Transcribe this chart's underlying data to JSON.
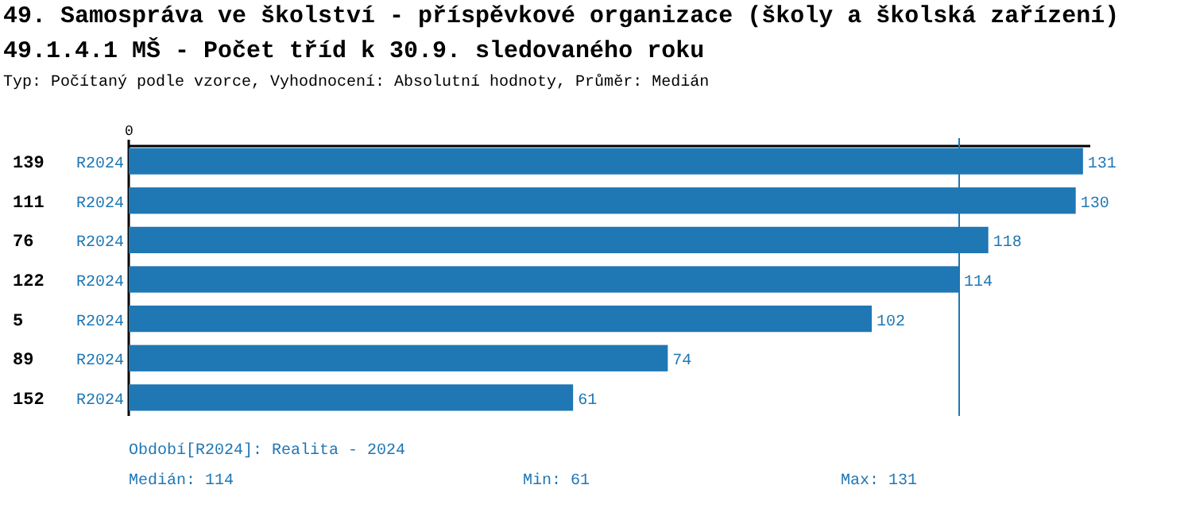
{
  "chart_data": {
    "type": "bar",
    "orientation": "horizontal",
    "title": "49. Samospráva ve školství - příspěvkové organizace (školy a školská zařízení)",
    "subtitle": "49.1.4.1 MŠ - Počet tříd k 30.9. sledovaného roku",
    "annotations": [
      "Typ: Počítaný podle vzorce, Vyhodnocení: Absolutní hodnoty, Průměr: Medián",
      "Období[R2024]: Realita - 2024",
      "Medián: 114",
      "Min: 61",
      "Max: 131",
      "0"
    ],
    "categories": [
      "139",
      "111",
      "76",
      "122",
      "5",
      "89",
      "152"
    ],
    "series": [
      {
        "name": "R2024",
        "color": "#1f77b4",
        "values": [
          131,
          130,
          118,
          114,
          102,
          74,
          61
        ]
      }
    ],
    "xlim": [
      0,
      132
    ],
    "data_labels": true,
    "ref_lines": [
      {
        "axis": "x",
        "value": 114,
        "color": "#1f77b4"
      }
    ]
  }
}
